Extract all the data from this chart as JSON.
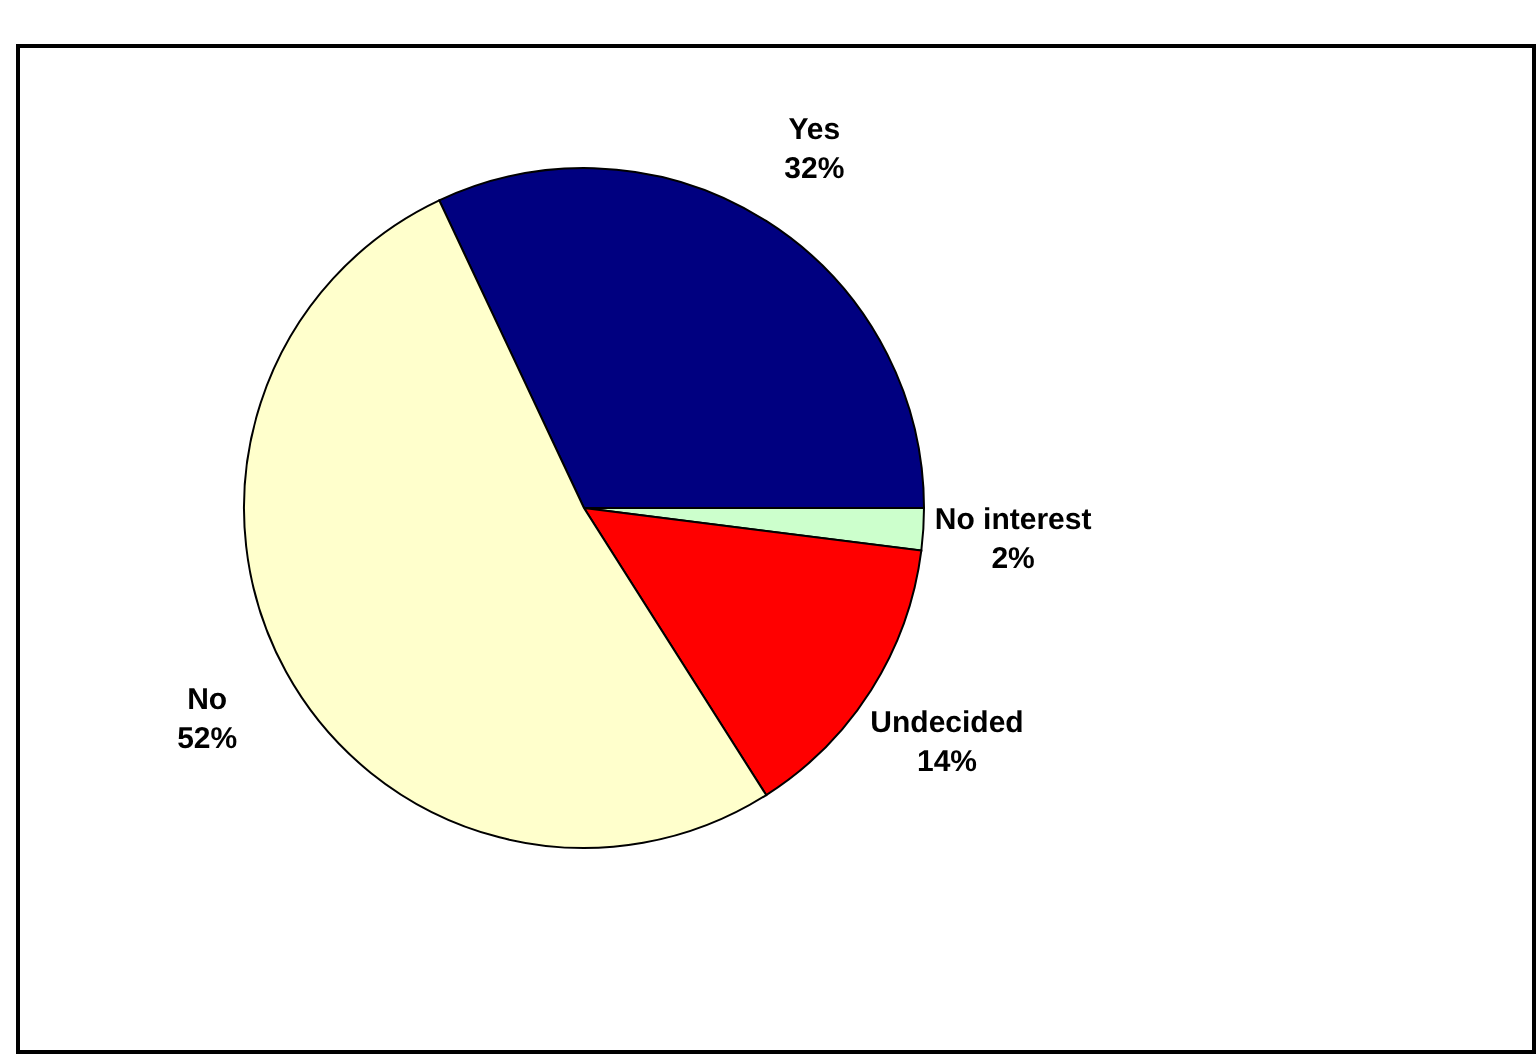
{
  "chart_data": {
    "type": "pie",
    "categories": [
      "Yes",
      "No interest",
      "Undecided",
      "No"
    ],
    "values": [
      32,
      2,
      14,
      52
    ],
    "colors": [
      "#000080",
      "#ccffcc",
      "#ff0000",
      "#ffffcc"
    ],
    "value_labels": [
      "32%",
      "2%",
      "14%",
      "52%"
    ],
    "legend": false
  }
}
